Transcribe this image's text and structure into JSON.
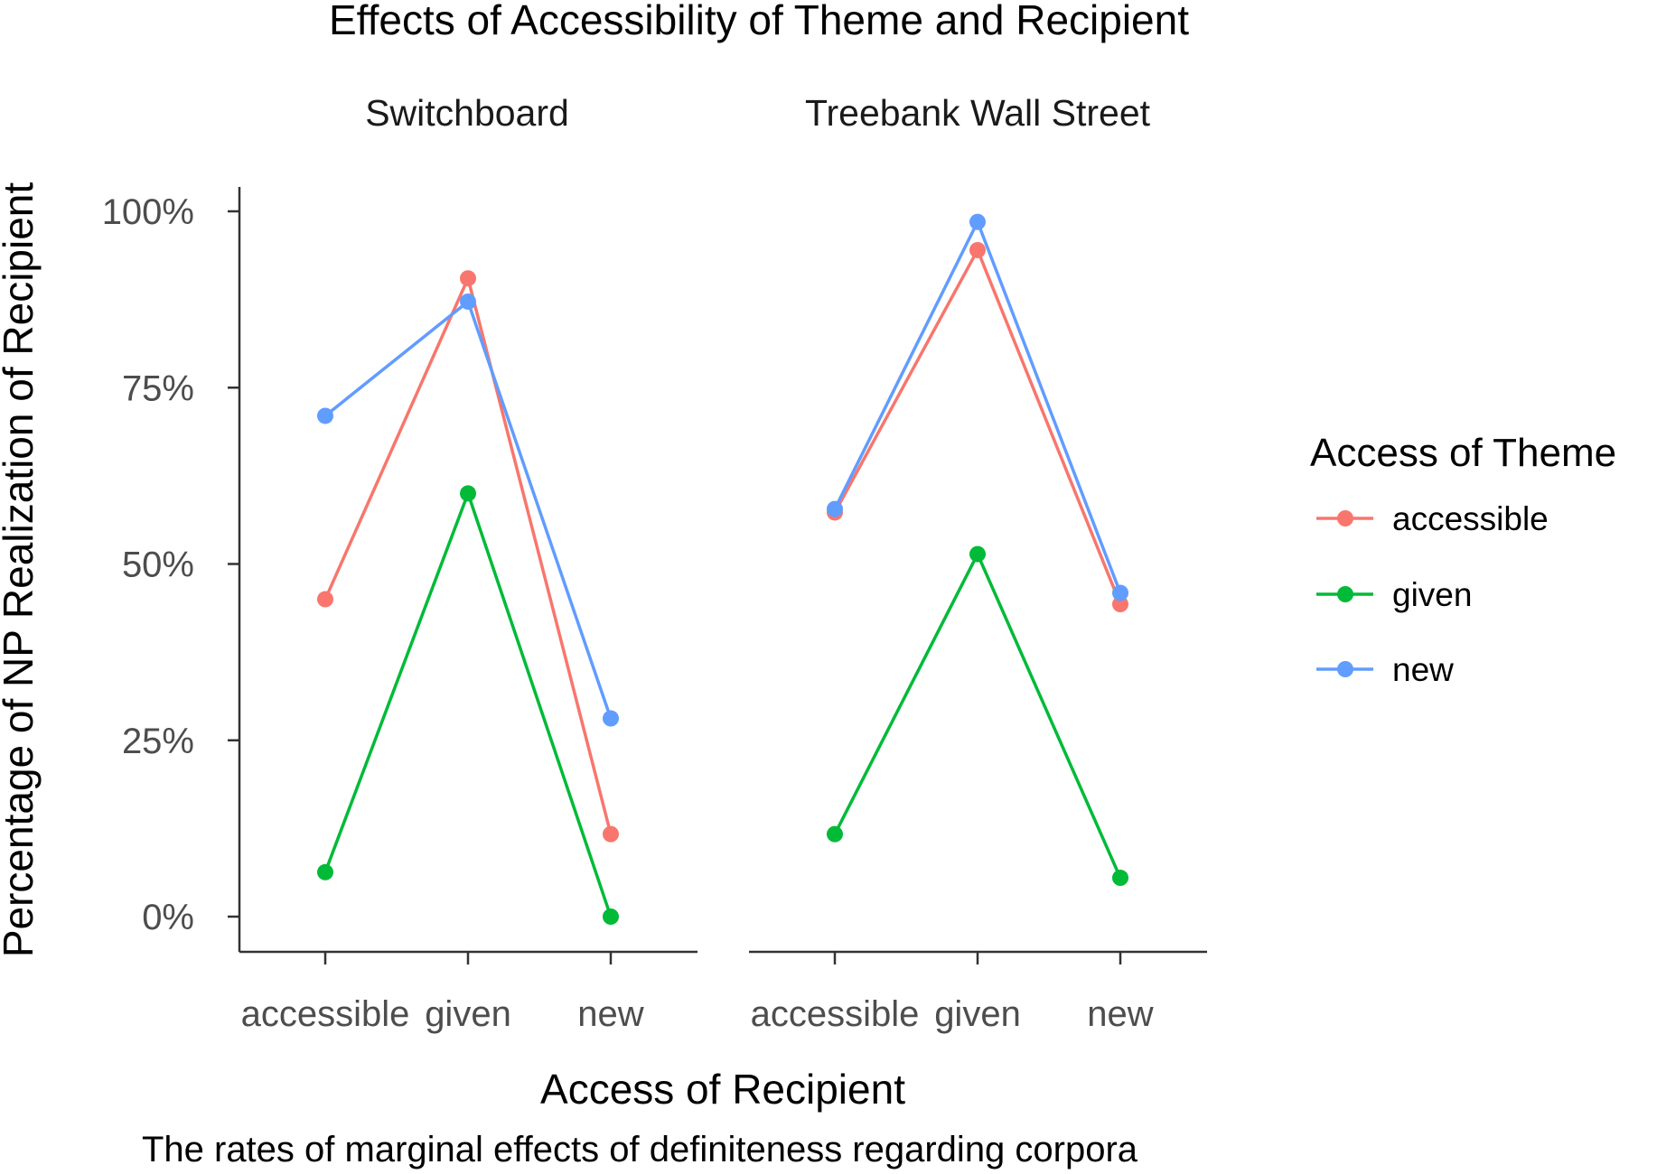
{
  "chart_data": {
    "type": "line",
    "title": "Effects of Accessibility of Theme and Recipient",
    "caption": "The rates of marginal effects of definiteness regarding corpora",
    "xlabel": "Access of Recipient",
    "ylabel": "Percentage of NP Realization of Recipient",
    "ylim": [
      0,
      1
    ],
    "yticks": [
      "0%",
      "25%",
      "50%",
      "75%",
      "100%"
    ],
    "categories": [
      "accessible",
      "given",
      "new"
    ],
    "legend": {
      "title": "Access of Theme",
      "position": "right"
    },
    "grid": false,
    "panels": [
      {
        "strip": "Switchboard",
        "series": [
          {
            "name": "accessible",
            "color": "#F8766D",
            "values": [
              0.45,
              0.905,
              0.117
            ]
          },
          {
            "name": "given",
            "color": "#00BA38",
            "values": [
              0.063,
              0.6,
              0.0
            ]
          },
          {
            "name": "new",
            "color": "#619CFF",
            "values": [
              0.71,
              0.872,
              0.281
            ]
          }
        ]
      },
      {
        "strip": "Treebank Wall Street",
        "series": [
          {
            "name": "accessible",
            "color": "#F8766D",
            "values": [
              0.573,
              0.945,
              0.443
            ]
          },
          {
            "name": "given",
            "color": "#00BA38",
            "values": [
              0.117,
              0.514,
              0.055
            ]
          },
          {
            "name": "new",
            "color": "#619CFF",
            "values": [
              0.578,
              0.985,
              0.459
            ]
          }
        ]
      }
    ]
  }
}
